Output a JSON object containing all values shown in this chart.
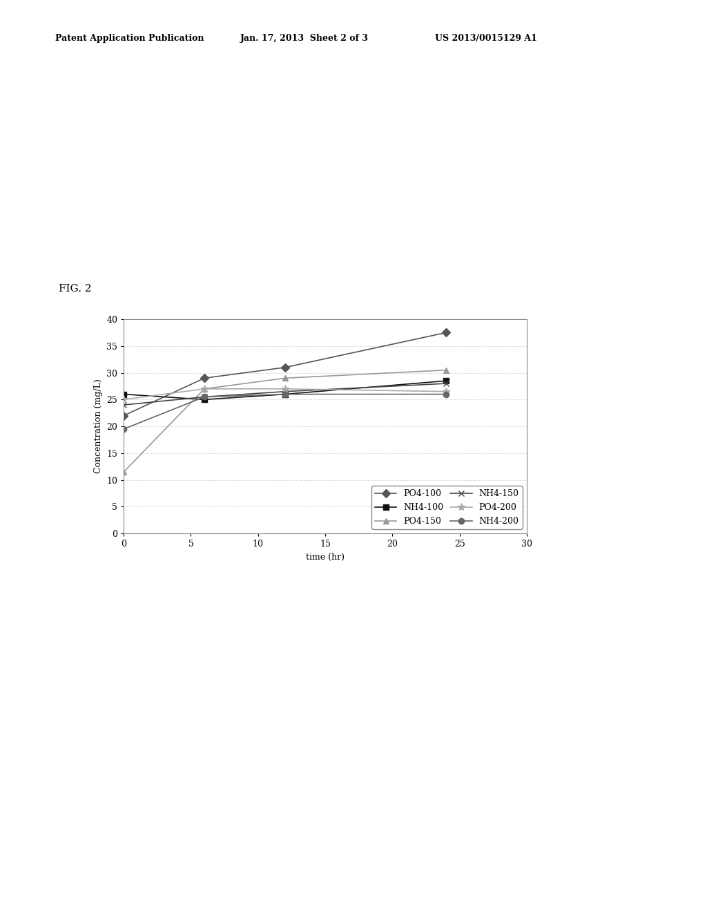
{
  "header_left": "Patent Application Publication",
  "header_mid": "Jan. 17, 2013  Sheet 2 of 3",
  "header_right": "US 2013/0015129 A1",
  "fig_label": "FIG. 2",
  "xlabel": "time (hr)",
  "ylabel": "Concentration (mg/L)",
  "xlim": [
    0,
    30
  ],
  "ylim": [
    0,
    40
  ],
  "xticks": [
    0,
    5,
    10,
    15,
    20,
    25,
    30
  ],
  "yticks": [
    0,
    5,
    10,
    15,
    20,
    25,
    30,
    35,
    40
  ],
  "series": {
    "PO4-100": {
      "x": [
        0,
        6,
        12,
        24
      ],
      "y": [
        22,
        29,
        31,
        37.5
      ],
      "color": "#555555",
      "marker": "D",
      "linestyle": "-",
      "linewidth": 1.2,
      "markersize": 6,
      "label": "PO4-100"
    },
    "NH4-100": {
      "x": [
        0,
        6,
        12,
        24
      ],
      "y": [
        26,
        25,
        26,
        28.5
      ],
      "color": "#111111",
      "marker": "s",
      "linestyle": "-",
      "linewidth": 1.2,
      "markersize": 6,
      "label": "NH4-100"
    },
    "PO4-150": {
      "x": [
        0,
        6,
        12,
        24
      ],
      "y": [
        11.5,
        27,
        29,
        30.5
      ],
      "color": "#999999",
      "marker": "^",
      "linestyle": "-",
      "linewidth": 1.2,
      "markersize": 6,
      "label": "PO4-150"
    },
    "NH4-150": {
      "x": [
        0,
        6,
        12,
        24
      ],
      "y": [
        24,
        25.5,
        26.5,
        28
      ],
      "color": "#444444",
      "marker": "x",
      "linestyle": "-",
      "linewidth": 1.2,
      "markersize": 6,
      "label": "NH4-150"
    },
    "PO4-200": {
      "x": [
        0,
        6,
        12,
        24
      ],
      "y": [
        25,
        27,
        27,
        26.5
      ],
      "color": "#aaaaaa",
      "marker": "*",
      "linestyle": "-",
      "linewidth": 1.2,
      "markersize": 8,
      "label": "PO4-200"
    },
    "NH4-200": {
      "x": [
        0,
        6,
        12,
        24
      ],
      "y": [
        19.5,
        25.5,
        26,
        26
      ],
      "color": "#666666",
      "marker": "o",
      "linestyle": "-",
      "linewidth": 1.2,
      "markersize": 6,
      "label": "NH4-200"
    }
  },
  "background_color": "#ffffff",
  "plot_bg_color": "#ffffff",
  "border_color": "#888888",
  "header_fontsize": 9,
  "figlabel_fontsize": 11,
  "axis_fontsize": 9,
  "tick_fontsize": 9,
  "legend_fontsize": 9
}
